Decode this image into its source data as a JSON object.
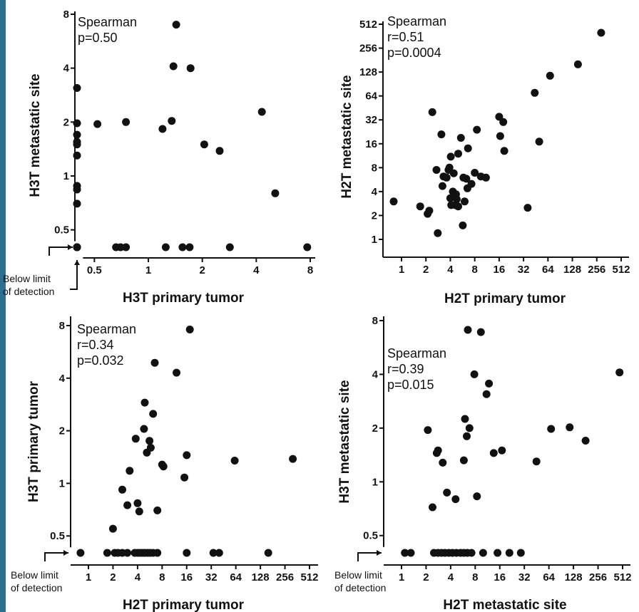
{
  "colors": {
    "stripe": "#2e6f91",
    "points": "#111111",
    "axis": "#111111"
  },
  "chart_data": [
    {
      "type": "scatter",
      "xlabel": "H3T primary tumor",
      "ylabel": "H3T metastatic site",
      "x_scale": "log2",
      "y_scale": "log2",
      "x_ticks": [
        0.5,
        1,
        2,
        4,
        8
      ],
      "y_ticks": [
        0.5,
        1,
        2,
        4,
        8
      ],
      "below_limit_label": [
        "Below limit",
        "of detection"
      ],
      "below_limit_axes": [
        "x",
        "y"
      ],
      "annotation": [
        "Spearman",
        "p=0.50"
      ],
      "below_limit_value": 0.4,
      "points": [
        [
          0.4,
          3.1
        ],
        [
          0.4,
          1.97
        ],
        [
          0.4,
          1.7
        ],
        [
          0.4,
          1.55
        ],
        [
          0.4,
          1.5
        ],
        [
          0.4,
          1.3
        ],
        [
          0.4,
          0.88
        ],
        [
          0.4,
          0.84
        ],
        [
          0.4,
          0.7
        ],
        [
          0.52,
          1.95
        ],
        [
          0.75,
          2.0
        ],
        [
          1.2,
          1.83
        ],
        [
          1.35,
          2.03
        ],
        [
          1.38,
          4.1
        ],
        [
          1.43,
          7.0
        ],
        [
          1.72,
          4.0
        ],
        [
          2.05,
          1.5
        ],
        [
          2.5,
          1.38
        ],
        [
          4.3,
          2.28
        ],
        [
          5.1,
          0.8
        ],
        [
          0.4,
          0.4
        ],
        [
          0.4,
          0.4
        ],
        [
          0.4,
          0.4
        ],
        [
          0.4,
          0.4
        ],
        [
          0.66,
          0.4
        ],
        [
          0.7,
          0.4
        ],
        [
          0.75,
          0.4
        ],
        [
          1.25,
          0.4
        ],
        [
          1.55,
          0.4
        ],
        [
          1.7,
          0.4
        ],
        [
          2.85,
          0.4
        ],
        [
          7.7,
          0.4
        ]
      ]
    },
    {
      "type": "scatter",
      "xlabel": "H2T primary tumor",
      "ylabel": "H2T metastatic site",
      "x_scale": "log2",
      "y_scale": "log2",
      "x_ticks": [
        1,
        2,
        4,
        8,
        16,
        32,
        64,
        128,
        256,
        512
      ],
      "y_ticks": [
        1,
        2,
        4,
        8,
        16,
        32,
        64,
        128,
        256,
        512
      ],
      "below_limit_label": [],
      "below_limit_axes": [],
      "annotation": [
        "Spearman",
        "r=0.51",
        "p=0.0004"
      ],
      "points": [
        [
          0.8,
          3.0
        ],
        [
          1.7,
          2.6
        ],
        [
          2.1,
          2.1
        ],
        [
          2.2,
          2.3
        ],
        [
          2.4,
          40
        ],
        [
          2.7,
          7.5
        ],
        [
          2.8,
          1.2
        ],
        [
          3.1,
          21
        ],
        [
          3.2,
          4.7
        ],
        [
          3.3,
          6.2
        ],
        [
          3.6,
          6.0
        ],
        [
          3.8,
          7.5
        ],
        [
          3.9,
          8.0
        ],
        [
          4.0,
          3.3
        ],
        [
          4.05,
          11
        ],
        [
          4.1,
          2.7
        ],
        [
          4.3,
          4.0
        ],
        [
          4.4,
          6.8
        ],
        [
          4.6,
          2.7
        ],
        [
          4.7,
          3.7
        ],
        [
          4.8,
          3.2
        ],
        [
          5.0,
          12
        ],
        [
          5.0,
          2.6
        ],
        [
          5.4,
          19
        ],
        [
          5.7,
          1.5
        ],
        [
          5.8,
          6.0
        ],
        [
          6.0,
          3.0
        ],
        [
          6.3,
          5.8
        ],
        [
          6.5,
          4.4
        ],
        [
          6.6,
          14
        ],
        [
          7.3,
          5.0
        ],
        [
          8.0,
          6.9
        ],
        [
          8.5,
          24
        ],
        [
          9.5,
          6.2
        ],
        [
          11,
          6.0
        ],
        [
          16,
          35
        ],
        [
          16.5,
          20
        ],
        [
          18,
          30
        ],
        [
          18.5,
          13
        ],
        [
          36,
          2.5
        ],
        [
          44,
          70
        ],
        [
          50,
          17
        ],
        [
          68,
          115
        ],
        [
          150,
          160
        ],
        [
          290,
          400
        ]
      ]
    },
    {
      "type": "scatter",
      "xlabel": "H2T primary tumor",
      "ylabel": "H3T primary tumor",
      "x_scale": "log2",
      "y_scale": "log2",
      "x_ticks": [
        1,
        2,
        4,
        8,
        16,
        32,
        64,
        128,
        256,
        512
      ],
      "y_ticks": [
        0.5,
        1,
        2,
        4,
        8
      ],
      "below_limit_label": [
        "Below limit",
        "of detection"
      ],
      "below_limit_axes": [
        "y"
      ],
      "annotation": [
        "Spearman",
        "r=0.34",
        "p=0.032"
      ],
      "below_limit_value": 0.4,
      "points": [
        [
          2.0,
          0.55
        ],
        [
          2.6,
          0.92
        ],
        [
          3.0,
          0.75
        ],
        [
          3.2,
          1.18
        ],
        [
          3.8,
          1.8
        ],
        [
          4.0,
          0.77
        ],
        [
          4.2,
          0.69
        ],
        [
          4.8,
          2.05
        ],
        [
          4.9,
          2.9
        ],
        [
          5.2,
          1.5
        ],
        [
          5.6,
          1.75
        ],
        [
          5.8,
          1.6
        ],
        [
          6.2,
          2.5
        ],
        [
          6.5,
          4.9
        ],
        [
          7.0,
          0.7
        ],
        [
          8.0,
          1.28
        ],
        [
          8.3,
          1.25
        ],
        [
          12,
          4.3
        ],
        [
          15,
          1.08
        ],
        [
          16,
          1.45
        ],
        [
          17.5,
          7.6
        ],
        [
          62,
          1.35
        ],
        [
          320,
          1.38
        ],
        [
          0.8,
          0.4
        ],
        [
          1.7,
          0.4
        ],
        [
          2.1,
          0.4
        ],
        [
          2.3,
          0.4
        ],
        [
          2.6,
          0.4
        ],
        [
          3.0,
          0.4
        ],
        [
          3.7,
          0.4
        ],
        [
          4.0,
          0.4
        ],
        [
          4.3,
          0.4
        ],
        [
          4.6,
          0.4
        ],
        [
          4.9,
          0.4
        ],
        [
          5.3,
          0.4
        ],
        [
          5.7,
          0.4
        ],
        [
          6.2,
          0.4
        ],
        [
          7.0,
          0.4
        ],
        [
          16,
          0.4
        ],
        [
          34,
          0.4
        ],
        [
          40,
          0.4
        ],
        [
          160,
          0.4
        ]
      ]
    },
    {
      "type": "scatter",
      "xlabel": "H2T metastatic site",
      "ylabel": "H3T metastatic site",
      "x_scale": "log2",
      "y_scale": "log2",
      "x_ticks": [
        1,
        2,
        4,
        8,
        16,
        32,
        64,
        128,
        256,
        512
      ],
      "y_ticks": [
        0.5,
        1,
        2,
        4,
        8
      ],
      "below_limit_label": [
        "Below limit",
        "of detection"
      ],
      "below_limit_axes": [
        "y"
      ],
      "annotation": [
        "Spearman",
        "r=0.39",
        "p=0.015"
      ],
      "below_limit_value": 0.4,
      "points": [
        [
          2.1,
          1.95
        ],
        [
          2.4,
          0.72
        ],
        [
          2.7,
          1.45
        ],
        [
          2.8,
          1.5
        ],
        [
          3.2,
          1.28
        ],
        [
          3.6,
          0.87
        ],
        [
          4.6,
          0.8
        ],
        [
          5.8,
          1.32
        ],
        [
          6.0,
          2.25
        ],
        [
          6.3,
          1.8
        ],
        [
          6.5,
          7.1
        ],
        [
          6.8,
          2.0
        ],
        [
          7.8,
          4.0
        ],
        [
          8.4,
          0.83
        ],
        [
          9.4,
          6.9
        ],
        [
          11.0,
          3.1
        ],
        [
          11.8,
          3.55
        ],
        [
          13.5,
          1.45
        ],
        [
          17,
          1.5
        ],
        [
          45,
          1.3
        ],
        [
          68,
          1.98
        ],
        [
          115,
          2.02
        ],
        [
          180,
          1.7
        ],
        [
          470,
          4.1
        ],
        [
          1.1,
          0.4
        ],
        [
          1.3,
          0.4
        ],
        [
          2.5,
          0.4
        ],
        [
          2.8,
          0.4
        ],
        [
          3.1,
          0.4
        ],
        [
          3.4,
          0.4
        ],
        [
          3.8,
          0.4
        ],
        [
          4.2,
          0.4
        ],
        [
          4.7,
          0.4
        ],
        [
          5.3,
          0.4
        ],
        [
          5.8,
          0.4
        ],
        [
          6.4,
          0.4
        ],
        [
          7.2,
          0.4
        ],
        [
          10,
          0.4
        ],
        [
          15,
          0.4
        ],
        [
          21,
          0.4
        ],
        [
          29,
          0.4
        ]
      ]
    }
  ]
}
